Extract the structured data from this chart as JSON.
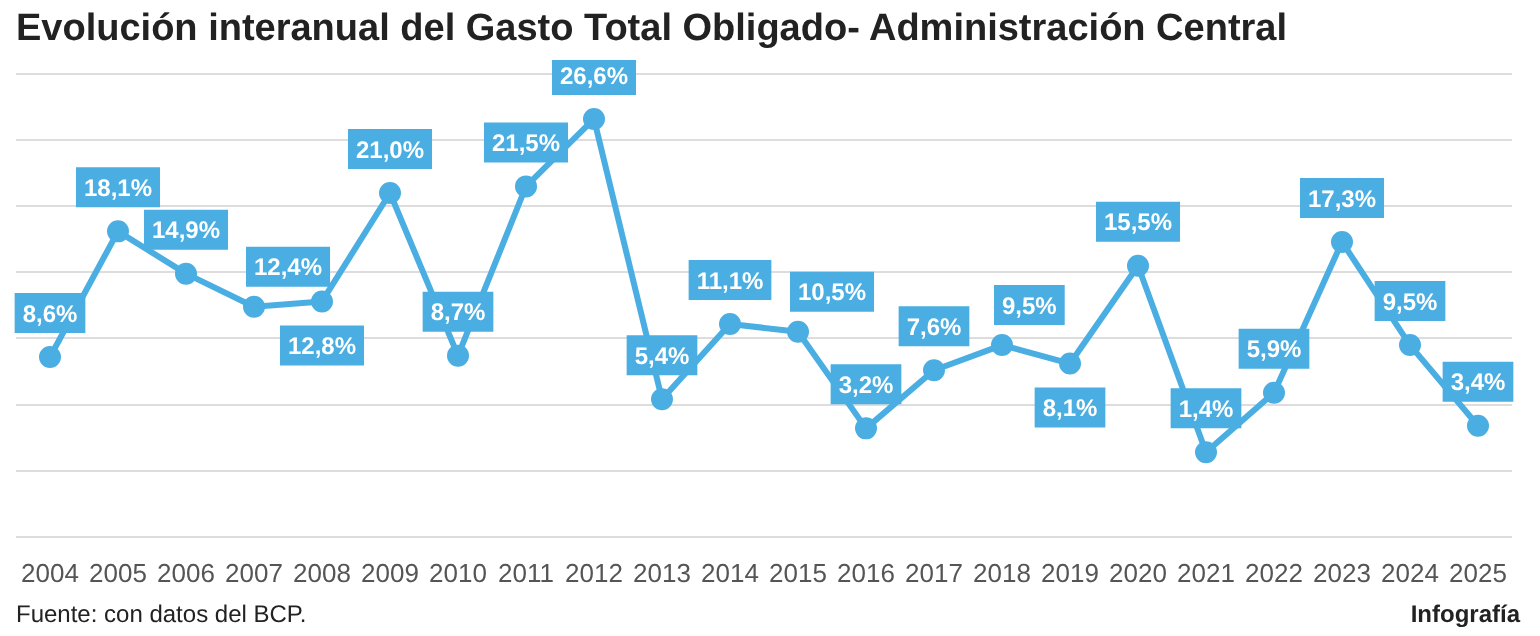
{
  "chart_data": {
    "type": "line",
    "title": "Evolución interanual del Gasto Total Obligado- Administración Central",
    "categories": [
      "2004",
      "2005",
      "2006",
      "2007",
      "2008",
      "2009",
      "2010",
      "2011",
      "2012",
      "2013",
      "2014",
      "2015",
      "2016",
      "2017",
      "2018",
      "2019",
      "2020",
      "2021",
      "2022",
      "2023",
      "2024",
      "2025"
    ],
    "series": [
      {
        "color": "#4aaee2",
        "values": [
          8.6,
          18.1,
          14.9,
          12.4,
          12.8,
          21.0,
          8.7,
          21.5,
          26.6,
          5.4,
          11.1,
          10.5,
          3.2,
          7.6,
          9.5,
          8.1,
          15.5,
          1.4,
          5.9,
          17.3,
          9.5,
          3.4
        ],
        "value_labels": [
          "8,6%",
          "18,1%",
          "14,9%",
          "12,4%",
          "12,8%",
          "21,0%",
          "8,7%",
          "21,5%",
          "26,6%",
          "5,4%",
          "11,1%",
          "10,5%",
          "3,2%",
          "7,6%",
          "9,5%",
          "8,1%",
          "15,5%",
          "1,4%",
          "5,9%",
          "17,3%",
          "9,5%",
          "3,4%"
        ]
      }
    ],
    "grid": "y",
    "tick_labels": "x",
    "marker": "circle",
    "line_style": "solid",
    "annotations": [
      "Fuente: con datos del BCP.",
      "Infografía"
    ]
  }
}
